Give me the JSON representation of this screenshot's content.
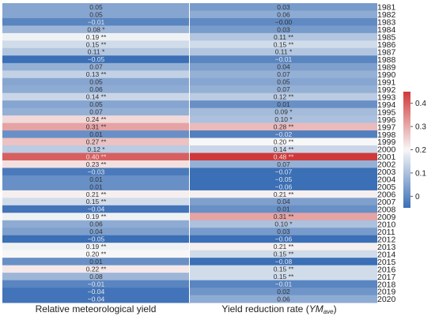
{
  "chart_data": {
    "type": "heatmap",
    "title": "",
    "columns": [
      "Relative meteorological yield",
      "Yield reduction rate (",
      "YM",
      "ave",
      ")"
    ],
    "column_labels": {
      "left": "Relative meteorological yield",
      "right_prefix": "Yield reduction rate (",
      "right_italic": "YM",
      "right_sub": "ave",
      "right_suffix": ")"
    },
    "years": [
      "1981",
      "1982",
      "1983",
      "1984",
      "1985",
      "1986",
      "1987",
      "1988",
      "1989",
      "1990",
      "1991",
      "1992",
      "1993",
      "1994",
      "1995",
      "1996",
      "1997",
      "1998",
      "1999",
      "2000",
      "2001",
      "2002",
      "2003",
      "2004",
      "2005",
      "2006",
      "2007",
      "2008",
      "2009",
      "2010",
      "2011",
      "2012",
      "2013",
      "2014",
      "2015",
      "2016",
      "2017",
      "2018",
      "2019",
      "2020"
    ],
    "series": [
      {
        "values": [
          0.05,
          0.05,
          -0.01,
          0.08,
          0.19,
          0.15,
          0.11,
          -0.05,
          0.07,
          0.13,
          0.05,
          0.06,
          0.14,
          0.05,
          0.07,
          0.24,
          0.31,
          0.01,
          0.27,
          0.12,
          0.4,
          0.23,
          -0.03,
          0.01,
          0.01,
          0.21,
          0.15,
          -0.04,
          0.19,
          0.06,
          0.04,
          -0.05,
          0.19,
          0.2,
          0.01,
          0.22,
          0.08,
          -0.01,
          -0.04,
          -0.04
        ],
        "labels": [
          "0.05",
          "0.05",
          "−0.01",
          "0.08",
          "0.19",
          "0.15",
          "0.11",
          "−0.05",
          "0.07",
          "0.13",
          "0.05",
          "0.06",
          "0.14",
          "0.05",
          "0.07",
          "0.24",
          "0.31",
          "0.01",
          "0.27",
          "0.12",
          "0.40",
          "0.23",
          "−0.03",
          "0.01",
          "0.01",
          "0.21",
          "0.15",
          "−0.04",
          "0.19",
          "0.06",
          "0.04",
          "−0.05",
          "0.19",
          "0.20",
          "0.01",
          "0.22",
          "0.08",
          "−0.01",
          "−0.04",
          "−0.04"
        ],
        "stars": [
          "",
          "",
          "",
          "*",
          "**",
          "**",
          "*",
          "",
          "",
          "**",
          "",
          "",
          "**",
          "",
          "",
          "**",
          "**",
          "",
          "**",
          "*",
          "**",
          "**",
          "",
          "",
          "",
          "**",
          "**",
          "",
          "**",
          "",
          "",
          "",
          "**",
          "**",
          "",
          "**",
          "",
          "",
          "",
          ""
        ]
      },
      {
        "values": [
          0.03,
          0.06,
          -0.0,
          0.03,
          0.11,
          0.15,
          0.11,
          -0.01,
          0.04,
          0.07,
          0.05,
          0.07,
          0.12,
          0.01,
          0.09,
          0.1,
          0.28,
          -0.02,
          0.2,
          0.14,
          0.48,
          0.07,
          -0.07,
          -0.05,
          -0.06,
          0.21,
          0.04,
          0.01,
          0.31,
          0.1,
          0.03,
          -0.06,
          0.21,
          0.15,
          -0.08,
          0.15,
          0.15,
          -0.01,
          0.02,
          0.06
        ],
        "labels": [
          "0.03",
          "0.06",
          "−0.00",
          "0.03",
          "0.11",
          "0.15",
          "0.11",
          "−0.01",
          "0.04",
          "0.07",
          "0.05",
          "0.07",
          "0.12",
          "0.01",
          "0.09",
          "0.10",
          "0.28",
          "−0.02",
          "0.20",
          "0.14",
          "0.48",
          "0.07",
          "−0.07",
          "−0.05",
          "−0.06",
          "0.21",
          "0.04",
          "0.01",
          "0.31",
          "0.10",
          "0.03",
          "−0.06",
          "0.21",
          "0.15",
          "−0.08",
          "0.15",
          "0.15",
          "−0.01",
          "0.02",
          "0.06"
        ],
        "stars": [
          "",
          "",
          "",
          "",
          "**",
          "**",
          "*",
          "",
          "",
          "",
          "",
          "",
          "**",
          "",
          "*",
          "*",
          "**",
          "",
          "**",
          "**",
          "**",
          "",
          "",
          "",
          "",
          "**",
          "",
          "",
          "**",
          "*",
          "",
          "",
          "**",
          "**",
          "",
          "**",
          "**",
          "",
          "",
          ""
        ]
      }
    ],
    "colorbar": {
      "min": -0.05,
      "max": 0.45,
      "ticks": [
        0,
        0.1,
        0.2,
        0.3,
        0.4
      ],
      "tick_labels": [
        "0",
        "0.1",
        "0.2",
        "0.3",
        "0.4"
      ],
      "colors": {
        "low": "#3b6fb6",
        "mid": "#f7f7f7",
        "high": "#d0393a",
        "mid_value": 0.2
      }
    }
  }
}
